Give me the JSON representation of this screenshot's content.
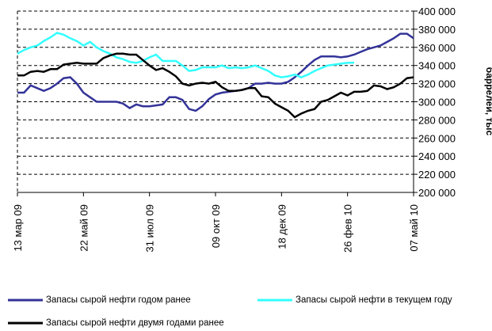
{
  "chart_data": {
    "type": "line",
    "y_label": "баррелей, тыс",
    "categories": [
      "13 мар 09",
      null,
      null,
      null,
      null,
      null,
      null,
      null,
      null,
      null,
      "22 май 09",
      null,
      null,
      null,
      null,
      null,
      null,
      null,
      null,
      null,
      "31 июл 09",
      null,
      null,
      null,
      null,
      null,
      null,
      null,
      null,
      null,
      "09 окт 09",
      null,
      null,
      null,
      null,
      null,
      null,
      null,
      null,
      null,
      "18 дек 09",
      null,
      null,
      null,
      null,
      null,
      null,
      null,
      null,
      null,
      "26 фев 10",
      null,
      null,
      null,
      null,
      null,
      null,
      null,
      null,
      null,
      "07 май 10"
    ],
    "series": [
      {
        "name": "Запасы сырой нефти годом ранее",
        "color": "#333399",
        "values": [
          310000,
          310000,
          318000,
          315000,
          312000,
          315000,
          320000,
          326000,
          327000,
          320000,
          310000,
          305000,
          300000,
          300000,
          300000,
          300000,
          298000,
          293000,
          297000,
          295000,
          295000,
          296000,
          297000,
          305000,
          305000,
          302000,
          292000,
          290000,
          295000,
          303000,
          308000,
          310000,
          311000,
          312000,
          313000,
          315000,
          320000,
          320000,
          321000,
          320000,
          320000,
          322000,
          327000,
          333000,
          340000,
          346000,
          350000,
          350000,
          350000,
          349000,
          350000,
          352000,
          355000,
          358000,
          360000,
          362000,
          366000,
          370000,
          375000,
          375000,
          370000
        ]
      },
      {
        "name": "Запасы сырой нефти в текущем году",
        "color": "#33ffff",
        "values": [
          353000,
          357000,
          360000,
          362000,
          367000,
          371000,
          376000,
          374000,
          370000,
          367000,
          362000,
          366000,
          360000,
          356000,
          353000,
          349000,
          347000,
          344000,
          343000,
          345000,
          349000,
          352000,
          345000,
          345000,
          345000,
          340000,
          334000,
          335000,
          338000,
          338000,
          338000,
          340000,
          337000,
          338000,
          337000,
          338000,
          340000,
          337000,
          334000,
          329000,
          327000,
          328000,
          330000,
          327000,
          330000,
          334000,
          337000,
          340000,
          341000,
          342000,
          343000,
          343000,
          null,
          null,
          null,
          null,
          null,
          null,
          null,
          null,
          null
        ]
      },
      {
        "name": "Запасы сырой нефти двумя годами ранее",
        "color": "#000000",
        "values": [
          329000,
          329000,
          333000,
          334000,
          333000,
          336000,
          336000,
          341000,
          342000,
          343000,
          342000,
          342000,
          342000,
          348000,
          351000,
          353000,
          353000,
          352000,
          352000,
          346000,
          340000,
          335000,
          337000,
          333000,
          328000,
          320000,
          318000,
          320000,
          321000,
          320000,
          322000,
          316000,
          312000,
          312000,
          313000,
          315000,
          315000,
          306000,
          305000,
          298000,
          294000,
          290000,
          283000,
          287000,
          290000,
          292000,
          300000,
          302000,
          306000,
          310000,
          307000,
          311000,
          311000,
          312000,
          318000,
          317000,
          314000,
          316000,
          320000,
          326000,
          327000
        ]
      }
    ],
    "ylim": [
      200000,
      400000
    ],
    "yticks": [
      {
        "value": 200000,
        "label": "200 000"
      },
      {
        "value": 220000,
        "label": "220 000"
      },
      {
        "value": 240000,
        "label": "240 000"
      },
      {
        "value": 260000,
        "label": "260 000"
      },
      {
        "value": 280000,
        "label": "280 000"
      },
      {
        "value": 300000,
        "label": "300 000"
      },
      {
        "value": 320000,
        "label": "320 000"
      },
      {
        "value": 340000,
        "label": "340 000"
      },
      {
        "value": 360000,
        "label": "360 000"
      },
      {
        "value": 380000,
        "label": "380 000"
      },
      {
        "value": 400000,
        "label": "400 000"
      }
    ],
    "grid": true
  }
}
